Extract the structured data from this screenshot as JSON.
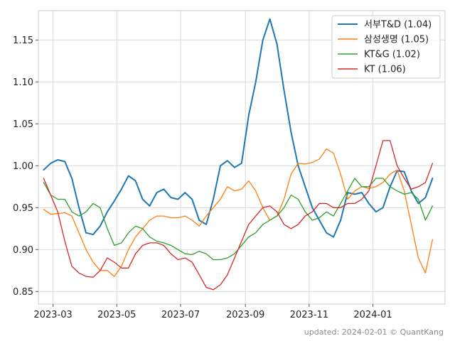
{
  "chart_data": {
    "type": "line",
    "title": "",
    "xlabel": "",
    "ylabel": "",
    "x_start": "2023-02-20",
    "x_end": "2024-02-27",
    "xlim": [
      "2023-02-15",
      "2024-03-10"
    ],
    "ylim": [
      0.835,
      1.185
    ],
    "grid": true,
    "legend_position": "top-right",
    "x_ticks": [
      "2023-03",
      "2023-05",
      "2023-07",
      "2023-09",
      "2023-11",
      "2024-01"
    ],
    "y_ticks": [
      "0.85",
      "0.90",
      "0.95",
      "1.00",
      "1.05",
      "1.10",
      "1.15"
    ],
    "series": [
      {
        "name": "서부T&D (1.04)",
        "color": "#1f77b4",
        "values": [
          0.995,
          1.003,
          1.007,
          1.005,
          0.985,
          0.95,
          0.92,
          0.918,
          0.928,
          0.945,
          0.958,
          0.972,
          0.988,
          0.982,
          0.96,
          0.952,
          0.968,
          0.972,
          0.962,
          0.96,
          0.968,
          0.96,
          0.935,
          0.93,
          0.96,
          1.0,
          1.006,
          0.998,
          1.003,
          1.06,
          1.1,
          1.15,
          1.175,
          1.145,
          1.09,
          1.04,
          1.0,
          0.975,
          0.95,
          0.935,
          0.92,
          0.915,
          0.935,
          0.968,
          0.966,
          0.968,
          0.955,
          0.945,
          0.95,
          0.975,
          0.994,
          0.993,
          0.97,
          0.955,
          0.962,
          0.985
        ]
      },
      {
        "name": "삼성생명 (1.05)",
        "color": "#ff7f0e",
        "values": [
          0.948,
          0.942,
          0.943,
          0.944,
          0.94,
          0.92,
          0.9,
          0.885,
          0.875,
          0.875,
          0.868,
          0.88,
          0.9,
          0.915,
          0.925,
          0.935,
          0.94,
          0.94,
          0.938,
          0.938,
          0.94,
          0.935,
          0.928,
          0.94,
          0.95,
          0.96,
          0.975,
          0.97,
          0.972,
          0.982,
          0.97,
          0.95,
          0.935,
          0.94,
          0.96,
          0.99,
          1.003,
          1.002,
          1.004,
          1.008,
          1.02,
          1.015,
          0.99,
          0.96,
          0.97,
          0.975,
          0.973,
          0.975,
          0.98,
          0.99,
          0.995,
          0.97,
          0.93,
          0.89,
          0.872,
          0.912
        ]
      },
      {
        "name": "KT&G (1.02)",
        "color": "#2ca02c",
        "values": [
          0.98,
          0.965,
          0.96,
          0.96,
          0.945,
          0.94,
          0.945,
          0.955,
          0.95,
          0.925,
          0.905,
          0.908,
          0.92,
          0.928,
          0.925,
          0.915,
          0.91,
          0.908,
          0.905,
          0.9,
          0.895,
          0.894,
          0.898,
          0.895,
          0.888,
          0.888,
          0.89,
          0.895,
          0.905,
          0.915,
          0.92,
          0.93,
          0.935,
          0.94,
          0.95,
          0.965,
          0.96,
          0.945,
          0.935,
          0.938,
          0.945,
          0.94,
          0.955,
          0.97,
          0.985,
          0.975,
          0.975,
          0.985,
          0.985,
          0.975,
          0.97,
          0.966,
          0.968,
          0.96,
          0.935,
          0.952
        ]
      },
      {
        "name": "KT (1.06)",
        "color": "#d62728",
        "values": [
          0.985,
          0.965,
          0.945,
          0.91,
          0.88,
          0.872,
          0.868,
          0.867,
          0.875,
          0.89,
          0.885,
          0.878,
          0.878,
          0.895,
          0.905,
          0.908,
          0.908,
          0.905,
          0.895,
          0.888,
          0.89,
          0.885,
          0.87,
          0.855,
          0.852,
          0.858,
          0.87,
          0.89,
          0.91,
          0.93,
          0.94,
          0.95,
          0.952,
          0.945,
          0.93,
          0.925,
          0.93,
          0.94,
          0.945,
          0.955,
          0.955,
          0.95,
          0.95,
          0.955,
          0.955,
          0.96,
          0.97,
          1.0,
          1.03,
          1.03,
          1.0,
          0.985,
          0.972,
          0.975,
          0.98,
          1.003
        ]
      }
    ]
  },
  "footer": {
    "text": "updated: 2024-02-01 © QuantKang"
  }
}
